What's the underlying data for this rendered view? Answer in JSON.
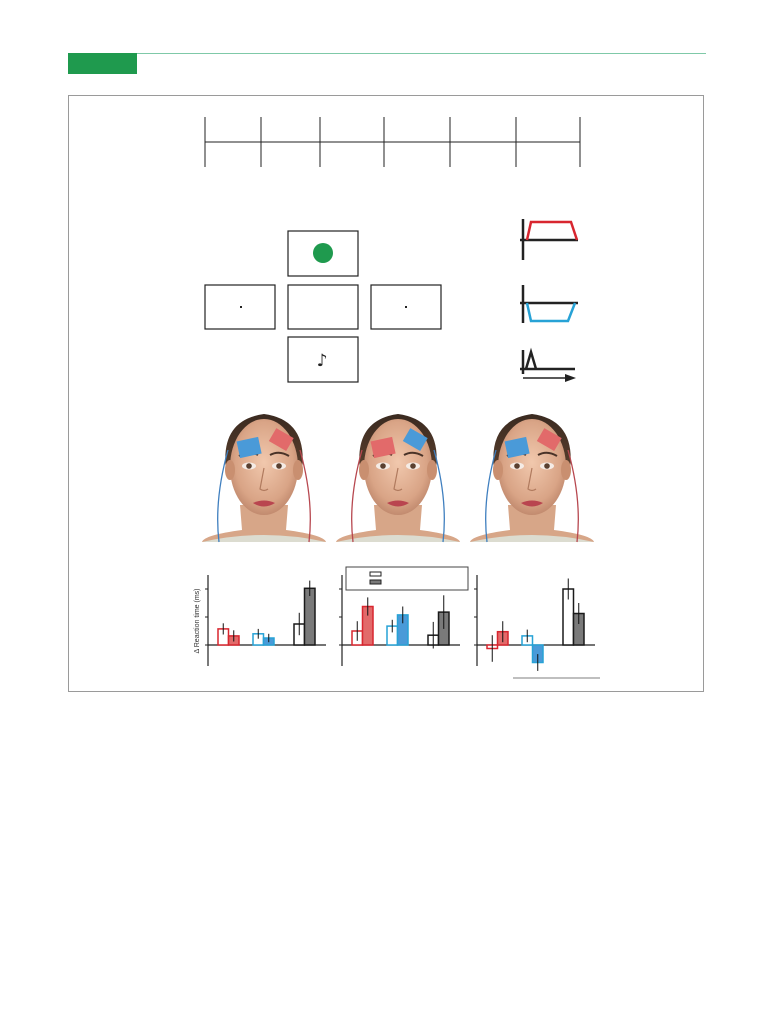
{
  "figure": {
    "timeline": {
      "segments": 6
    },
    "display": {
      "target": {
        "color": "#1f9a4e"
      },
      "tone_icon": "eighth-note-icon",
      "tone_glyph": "♪"
    },
    "waveforms": [
      {
        "name": "anodal",
        "color": "#d8262f"
      },
      {
        "name": "cathodal",
        "color": "#27a2d6"
      },
      {
        "name": "sham",
        "color": "#1a1a1a"
      }
    ],
    "montages": [
      {
        "left_pad": "#4a9ad8",
        "right_pad": "#e26a6a",
        "left_wire": "#3f7fbf",
        "right_wire": "#b7474f"
      },
      {
        "left_pad": "#e26a6a",
        "right_pad": "#4a9ad8",
        "left_wire": "#b7474f",
        "right_wire": "#3f7fbf"
      },
      {
        "left_pad": "#4a9ad8",
        "right_pad": "#e26a6a",
        "left_wire": "#3f7fbf",
        "right_wire": "#b7474f"
      }
    ]
  },
  "chart_data": {
    "type": "bar",
    "ylabel": "Δ Reaction time (ms)",
    "ylim": [
      -3,
      10
    ],
    "series_colors": {
      "open": "#ffffff",
      "filled": "#7a7a7a"
    },
    "panels": [
      {
        "groups": [
          {
            "edge": "#d8262f",
            "fill": "#e26a6a",
            "values": [
              2.3,
              1.3
            ],
            "err": [
              0.8,
              0.8
            ]
          },
          {
            "edge": "#27a2d6",
            "fill": "#4a9ad8",
            "values": [
              1.6,
              1.0
            ],
            "err": [
              0.7,
              0.6
            ]
          },
          {
            "edge": "#1a1a1a",
            "fill": "#7a7a7a",
            "values": [
              3.0,
              8.1
            ],
            "err": [
              1.6,
              1.1
            ]
          }
        ]
      },
      {
        "groups": [
          {
            "edge": "#d8262f",
            "fill": "#e26a6a",
            "values": [
              2.0,
              5.5
            ],
            "err": [
              1.4,
              1.3
            ]
          },
          {
            "edge": "#27a2d6",
            "fill": "#4a9ad8",
            "values": [
              2.7,
              4.3
            ],
            "err": [
              0.9,
              1.2
            ]
          },
          {
            "edge": "#1a1a1a",
            "fill": "#7a7a7a",
            "values": [
              1.4,
              4.7
            ],
            "err": [
              1.9,
              2.4
            ]
          }
        ]
      },
      {
        "groups": [
          {
            "edge": "#d8262f",
            "fill": "#e26a6a",
            "values": [
              -0.5,
              1.9
            ],
            "err": [
              1.9,
              1.5
            ]
          },
          {
            "edge": "#27a2d6",
            "fill": "#4a9ad8",
            "values": [
              1.3,
              -2.5
            ],
            "err": [
              0.9,
              1.2
            ]
          },
          {
            "edge": "#1a1a1a",
            "fill": "#7a7a7a",
            "values": [
              8.0,
              4.5
            ],
            "err": [
              1.5,
              1.5
            ]
          }
        ]
      }
    ]
  }
}
